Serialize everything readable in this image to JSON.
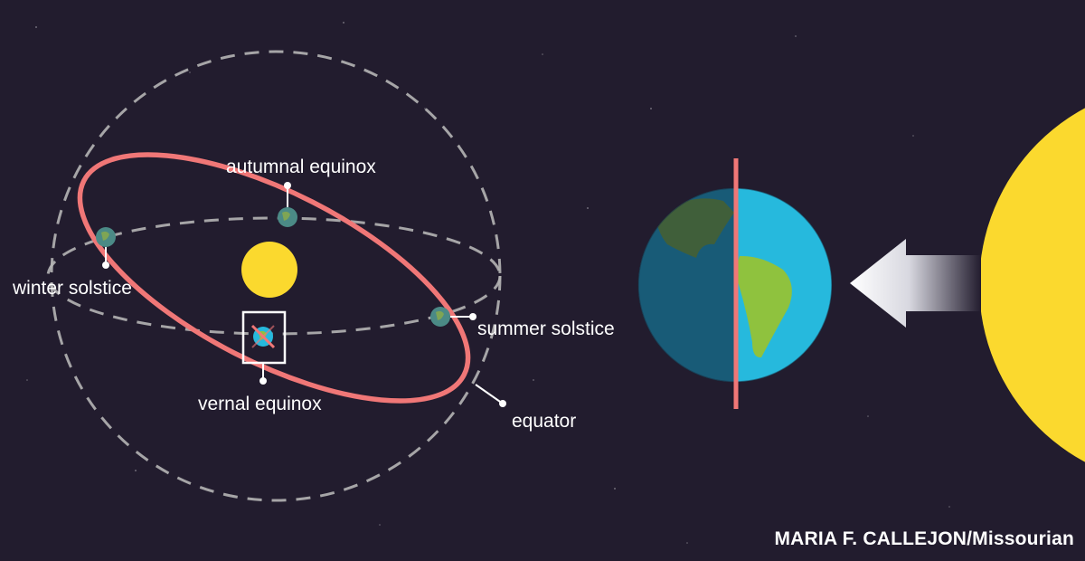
{
  "labels": {
    "autumnal": "autumnal equinox",
    "winter": "winter solstice",
    "summer": "summer solstice",
    "vernal": "vernal equinox",
    "equator": "equator"
  },
  "credit": "MARIA F. CALLEJON/Missourian",
  "colors": {
    "background": "#221c2e",
    "equator": "#f07777",
    "sun": "#fbd92e",
    "ocean": "#26b9dd",
    "land": "#8fc23e",
    "dashed": "#b5b5b5"
  },
  "icons": [
    "sun-icon",
    "earth-icon",
    "arrow-icon"
  ]
}
